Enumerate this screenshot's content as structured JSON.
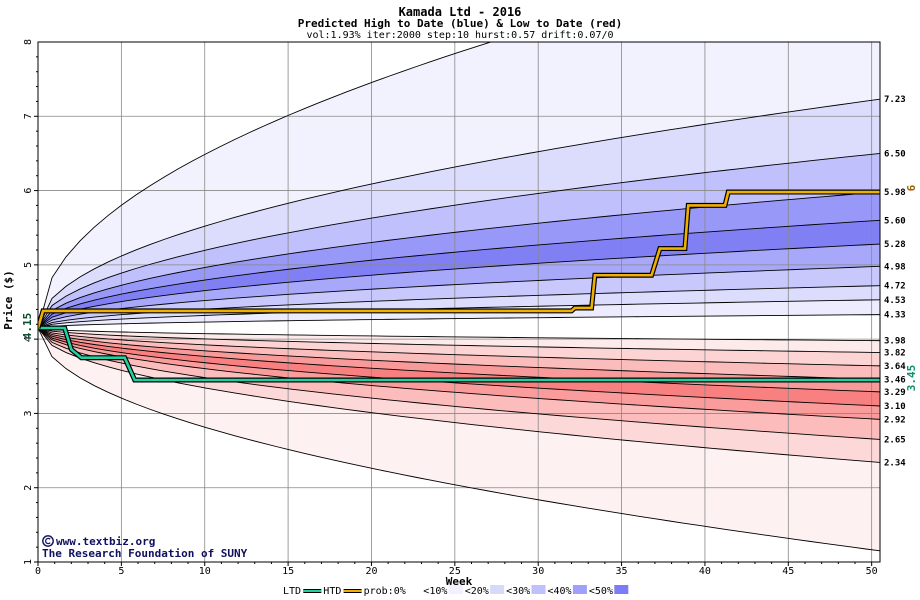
{
  "chart_data": {
    "type": "area",
    "title": "Kamada Ltd - 2016",
    "subtitle": "Predicted High to Date (blue) &  Low to Date (red)",
    "params": "vol:1.93% iter:2000 step:10 hurst:0.57 drift:0.07/0",
    "xlabel": "Week",
    "ylabel": "Price ($)",
    "xlim": [
      0,
      50.5
    ],
    "ylim": [
      1,
      8
    ],
    "x_ticks": [
      "0",
      "5",
      "10",
      "15",
      "20",
      "25",
      "30",
      "35",
      "40",
      "45",
      "50"
    ],
    "y_ticks": [
      "1",
      "2",
      "3",
      "4",
      "5",
      "6",
      "7",
      "8"
    ],
    "start_price": 4.15,
    "start_label": "4.15",
    "high_bands": [
      {
        "end": 4.33,
        "label": "4.33"
      },
      {
        "end": 4.53,
        "label": "4.53"
      },
      {
        "end": 4.72,
        "label": "4.72"
      },
      {
        "end": 4.98,
        "label": "4.98"
      },
      {
        "end": 5.28,
        "label": "5.28"
      },
      {
        "end": 5.6,
        "label": "5.60"
      },
      {
        "end": 5.98,
        "label": "5.98"
      },
      {
        "end": 6.5,
        "label": "6.50"
      },
      {
        "end": 7.23,
        "label": "7.23"
      },
      {
        "end": 9.4,
        "label": ""
      }
    ],
    "low_bands": [
      {
        "end": 3.98,
        "label": "3.98"
      },
      {
        "end": 3.82,
        "label": "3.82"
      },
      {
        "end": 3.64,
        "label": "3.64"
      },
      {
        "end": 3.46,
        "label": "3.46"
      },
      {
        "end": 3.29,
        "label": "3.29"
      },
      {
        "end": 3.1,
        "label": "3.10"
      },
      {
        "end": 2.92,
        "label": "2.92"
      },
      {
        "end": 2.65,
        "label": "2.65"
      },
      {
        "end": 2.34,
        "label": "2.34"
      },
      {
        "end": 1.15,
        "label": ""
      }
    ],
    "high_fill_colors": [
      "#ffffff",
      "#e8e8fc",
      "#dcdcfc",
      "#d0d0fc",
      "#c4c4fc",
      "#b4b4fc",
      "#a0a0fc",
      "#8c8cf8",
      "#9090fa",
      "#a8a8fc",
      "#c8c8fc",
      "#dedefc",
      "#ececfc",
      "#f4f4fe"
    ],
    "low_fill_colors": [
      "#ffffff",
      "#fcecec",
      "#fcdcdc",
      "#fccccc",
      "#fcbcbc",
      "#fca8a8",
      "#fc9090",
      "#fa8080",
      "#fc9898",
      "#fcb0b0",
      "#fcc8c8",
      "#fcdcdc",
      "#fceaea",
      "#fdf4f4"
    ],
    "htd_series": {
      "name": "prob",
      "color": "#f0b000",
      "points": [
        [
          0,
          4.15
        ],
        [
          0.3,
          4.38
        ],
        [
          32,
          4.38
        ],
        [
          32.2,
          4.42
        ],
        [
          33.2,
          4.42
        ],
        [
          33.4,
          4.86
        ],
        [
          36.8,
          4.86
        ],
        [
          37.3,
          5.22
        ],
        [
          38.8,
          5.22
        ],
        [
          39,
          5.8
        ],
        [
          41.2,
          5.8
        ],
        [
          41.4,
          5.98
        ],
        [
          50.5,
          5.98
        ]
      ],
      "end_label": "6"
    },
    "ltd_series": {
      "name": "HTD",
      "color": "#20d0a0",
      "points": [
        [
          0,
          4.15
        ],
        [
          1.6,
          4.15
        ],
        [
          2.0,
          3.86
        ],
        [
          2.6,
          3.75
        ],
        [
          5.2,
          3.75
        ],
        [
          5.8,
          3.45
        ],
        [
          50.5,
          3.45
        ]
      ],
      "end_label": "3.45"
    },
    "legend": [
      {
        "label": "LTD",
        "swatch": "line",
        "color": "#20d0a0"
      },
      {
        "label": "HTD",
        "swatch": "line",
        "color": "#f0b000"
      },
      {
        "label": "prob:0%",
        "swatch": "box",
        "color": "#ffffff"
      },
      {
        "label": "<10%",
        "swatch": "box",
        "color": "#f0f0ff"
      },
      {
        "label": "<20%",
        "swatch": "box",
        "color": "#d8d8fc"
      },
      {
        "label": "<30%",
        "swatch": "box",
        "color": "#c0c0fc"
      },
      {
        "label": "<40%",
        "swatch": "box",
        "color": "#a0a0fc"
      },
      {
        "label": "<50%",
        "swatch": "box",
        "color": "#7c7cf8"
      }
    ],
    "credit_line1": "www.textbiz.org",
    "credit_line2": "The Research Foundation of SUNY",
    "credit_icon": "copyright-icon",
    "grid": true
  }
}
